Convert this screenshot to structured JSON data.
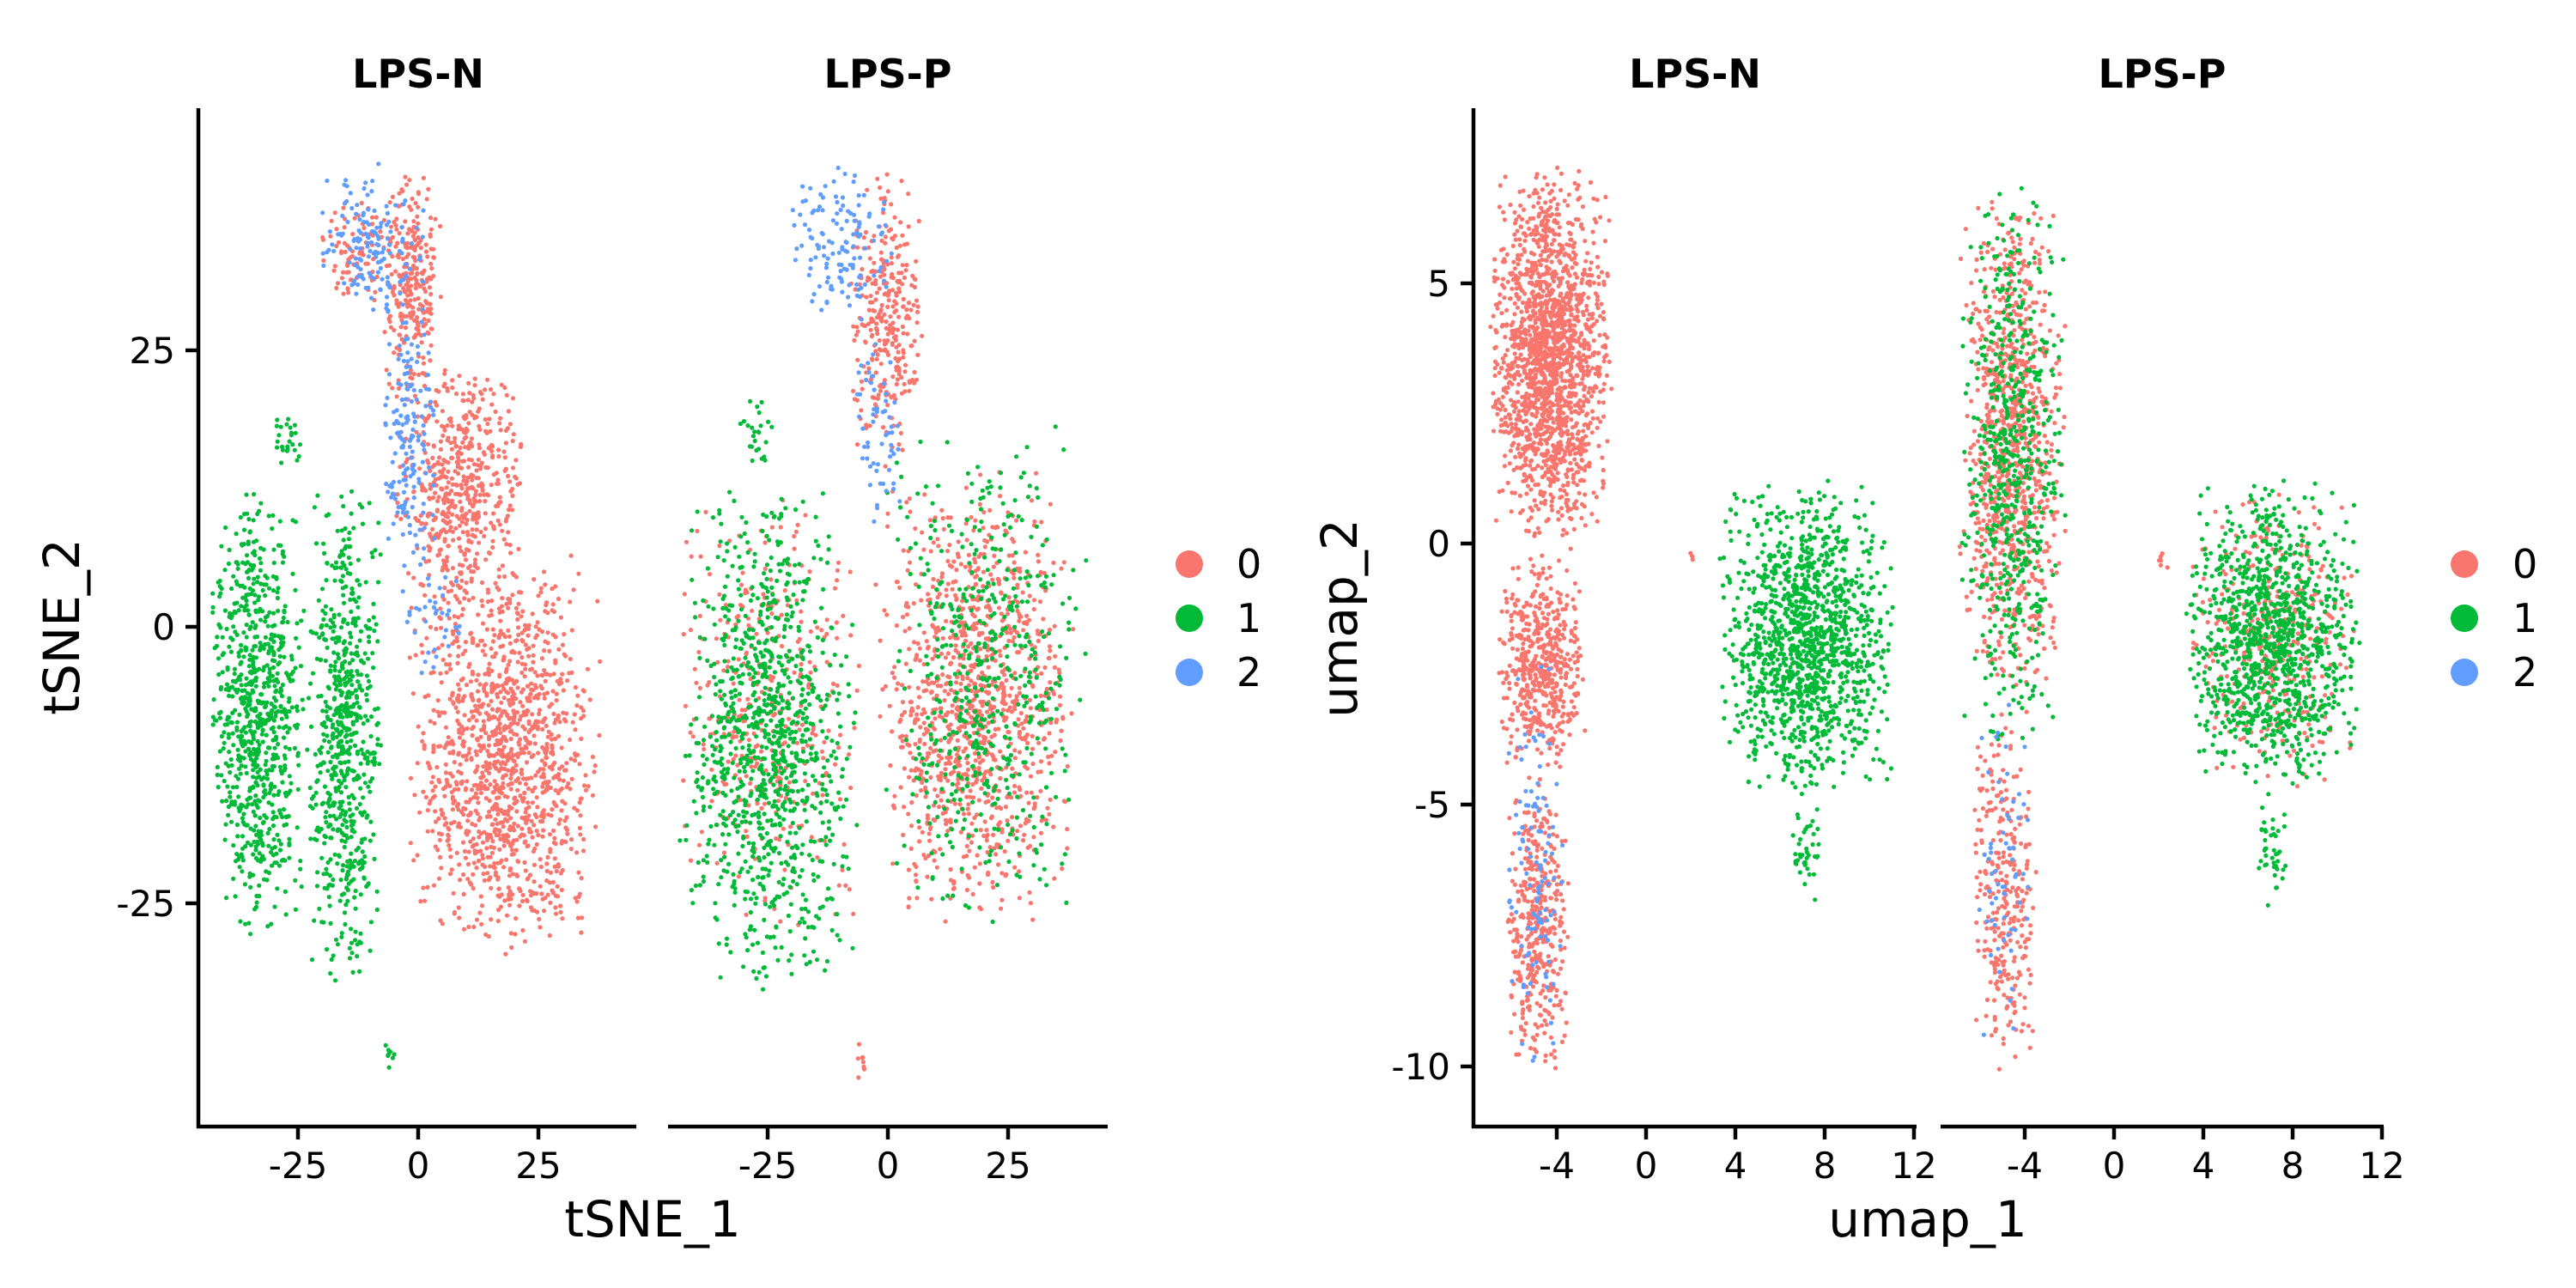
{
  "chart_data": [
    {
      "type": "scatter",
      "xlabel": "tSNE_1",
      "ylabel": "tSNE_2",
      "xlim": [
        -44,
        44
      ],
      "ylim": [
        -45,
        48
      ],
      "xticks": [
        "-25",
        "0",
        "25"
      ],
      "xtick_values": [
        -25,
        0,
        25
      ],
      "yticks": [
        "25",
        "0",
        "-25"
      ],
      "ytick_values": [
        25,
        0,
        -25
      ],
      "grid": false,
      "legend_position": "right",
      "legend": [
        {
          "label": "0",
          "color": "#F8766D"
        },
        {
          "label": "1",
          "color": "#00BA38"
        },
        {
          "label": "2",
          "color": "#619CFF"
        }
      ],
      "facets": [
        {
          "title": "LPS-N",
          "clusters": [
            {
              "label": "0",
              "color": "#F8766D",
              "regions": [
                {
                  "x": [
                    -7,
                    5
                  ],
                  "y": [
                    20,
                    43
                  ],
                  "n": 260
                },
                {
                  "x": [
                    -5,
                    22
                  ],
                  "y": [
                    2,
                    25
                  ],
                  "n": 520
                },
                {
                  "x": [
                    -2,
                    37
                  ],
                  "y": [
                    -30,
                    8
                  ],
                  "n": 1300
                },
                {
                  "x": [
                    -20,
                    -3
                  ],
                  "y": [
                    30,
                    40
                  ],
                  "n": 90
                }
              ]
            },
            {
              "label": "1",
              "color": "#00BA38",
              "regions": [
                {
                  "x": [
                    -42,
                    -22
                  ],
                  "y": [
                    -28,
                    14
                  ],
                  "n": 800
                },
                {
                  "x": [
                    -22,
                    -7
                  ],
                  "y": [
                    -33,
                    14
                  ],
                  "n": 650
                },
                {
                  "x": [
                    -30,
                    -22
                  ],
                  "y": [
                    15,
                    21
                  ],
                  "n": 25
                },
                {
                  "x": [
                    -7,
                    -4
                  ],
                  "y": [
                    -40,
                    -37
                  ],
                  "n": 8
                }
              ]
            },
            {
              "label": "2",
              "color": "#619CFF",
              "regions": [
                {
                  "x": [
                    -20,
                    2
                  ],
                  "y": [
                    28,
                    43
                  ],
                  "n": 150
                },
                {
                  "x": [
                    -7,
                    4
                  ],
                  "y": [
                    5,
                    30
                  ],
                  "n": 160
                },
                {
                  "x": [
                    -4,
                    10
                  ],
                  "y": [
                    -5,
                    10
                  ],
                  "n": 40
                }
              ]
            }
          ]
        },
        {
          "title": "LPS-P",
          "clusters": [
            {
              "label": "0",
              "color": "#F8766D",
              "regions": [
                {
                  "x": [
                    -8,
                    8
                  ],
                  "y": [
                    15,
                    43
                  ],
                  "n": 300
                },
                {
                  "x": [
                    -3,
                    38
                  ],
                  "y": [
                    -27,
                    15
                  ],
                  "n": 1100
                },
                {
                  "x": [
                    -42,
                    -5
                  ],
                  "y": [
                    -28,
                    14
                  ],
                  "n": 380
                },
                {
                  "x": [
                    -7,
                    -4
                  ],
                  "y": [
                    -41,
                    -37
                  ],
                  "n": 8
                }
              ]
            },
            {
              "label": "1",
              "color": "#00BA38",
              "regions": [
                {
                  "x": [
                    -42,
                    -6
                  ],
                  "y": [
                    -33,
                    14
                  ],
                  "n": 1000
                },
                {
                  "x": [
                    -1,
                    40
                  ],
                  "y": [
                    -28,
                    20
                  ],
                  "n": 520
                },
                {
                  "x": [
                    -30,
                    -22
                  ],
                  "y": [
                    15,
                    22
                  ],
                  "n": 25
                }
              ]
            },
            {
              "label": "2",
              "color": "#619CFF",
              "regions": [
                {
                  "x": [
                    -20,
                    2
                  ],
                  "y": [
                    28,
                    43
                  ],
                  "n": 130
                },
                {
                  "x": [
                    -7,
                    3
                  ],
                  "y": [
                    10,
                    28
                  ],
                  "n": 60
                }
              ]
            }
          ]
        }
      ]
    },
    {
      "type": "scatter",
      "xlabel": "umap_1",
      "ylabel": "umap_2",
      "xlim": [
        -7.6,
        12.2
      ],
      "ylim": [
        -11.1,
        8.4
      ],
      "xticks": [
        "-4",
        "0",
        "4",
        "8",
        "12"
      ],
      "xtick_values": [
        -4,
        0,
        4,
        8,
        12
      ],
      "yticks": [
        "5",
        "0",
        "-5",
        "-10"
      ],
      "ytick_values": [
        5,
        0,
        -5,
        -10
      ],
      "grid": false,
      "legend_position": "right",
      "legend": [
        {
          "label": "0",
          "color": "#F8766D"
        },
        {
          "label": "1",
          "color": "#00BA38"
        },
        {
          "label": "2",
          "color": "#619CFF"
        }
      ],
      "facets": [
        {
          "title": "LPS-N",
          "clusters": [
            {
              "label": "0",
              "color": "#F8766D",
              "regions": [
                {
                  "x": [
                    -6.9,
                    -1.4
                  ],
                  "y": [
                    0,
                    7.3
                  ],
                  "n": 1700
                },
                {
                  "x": [
                    -6.6,
                    -2.4
                  ],
                  "y": [
                    -4.5,
                    0
                  ],
                  "n": 520
                },
                {
                  "x": [
                    -6.2,
                    -3.3
                  ],
                  "y": [
                    -10.1,
                    -4.5
                  ],
                  "n": 380
                },
                {
                  "x": [
                    2,
                    2.3
                  ],
                  "y": [
                    -0.3,
                    0
                  ],
                  "n": 3
                }
              ]
            },
            {
              "label": "1",
              "color": "#00BA38",
              "regions": [
                {
                  "x": [
                    3.3,
                    11.3
                  ],
                  "y": [
                    -4.8,
                    1.3
                  ],
                  "n": 1300
                },
                {
                  "x": [
                    6.5,
                    8
                  ],
                  "y": [
                    -6.9,
                    -4.8
                  ],
                  "n": 40
                }
              ]
            },
            {
              "label": "2",
              "color": "#619CFF",
              "regions": [
                {
                  "x": [
                    -6.3,
                    -3.3
                  ],
                  "y": [
                    -10.2,
                    -2
                  ],
                  "n": 110
                }
              ]
            }
          ]
        },
        {
          "title": "LPS-P",
          "clusters": [
            {
              "label": "0",
              "color": "#F8766D",
              "regions": [
                {
                  "x": [
                    -6.8,
                    -2
                  ],
                  "y": [
                    -3,
                    7
                  ],
                  "n": 900
                },
                {
                  "x": [
                    -6.2,
                    -3.3
                  ],
                  "y": [
                    -10.1,
                    -3
                  ],
                  "n": 300
                },
                {
                  "x": [
                    3.3,
                    11.3
                  ],
                  "y": [
                    -4.8,
                    1.3
                  ],
                  "n": 350
                },
                {
                  "x": [
                    2.1,
                    2.7
                  ],
                  "y": [
                    -0.5,
                    0
                  ],
                  "n": 6
                }
              ]
            },
            {
              "label": "1",
              "color": "#00BA38",
              "regions": [
                {
                  "x": [
                    -6.8,
                    -2
                  ],
                  "y": [
                    -4,
                    7.1
                  ],
                  "n": 600
                },
                {
                  "x": [
                    3.3,
                    11.3
                  ],
                  "y": [
                    -4.8,
                    1.3
                  ],
                  "n": 1100
                },
                {
                  "x": [
                    6.5,
                    8
                  ],
                  "y": [
                    -6.9,
                    -4.8
                  ],
                  "n": 40
                }
              ]
            },
            {
              "label": "2",
              "color": "#619CFF",
              "regions": [
                {
                  "x": [
                    -6.3,
                    -3.3
                  ],
                  "y": [
                    -10.2,
                    -2
                  ],
                  "n": 60
                }
              ]
            }
          ]
        }
      ]
    }
  ]
}
